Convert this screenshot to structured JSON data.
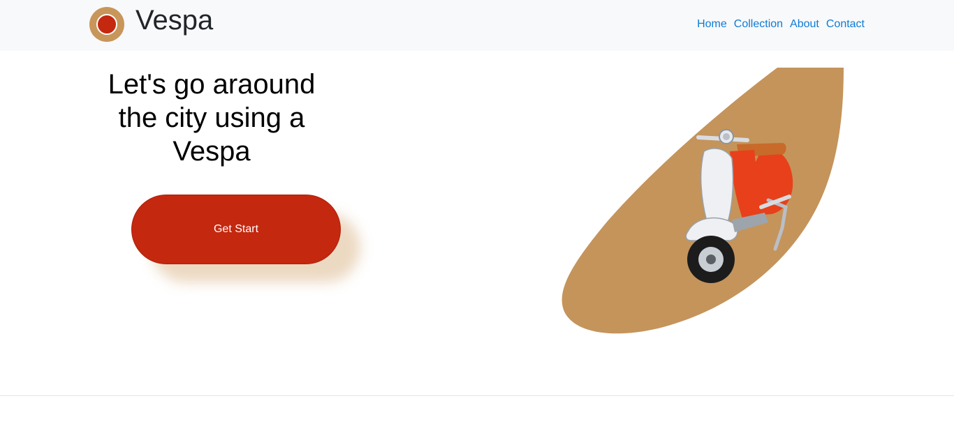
{
  "brand": {
    "name": "Vespa"
  },
  "nav": {
    "items": [
      {
        "label": "Home"
      },
      {
        "label": "Collection"
      },
      {
        "label": "About"
      },
      {
        "label": "Contact"
      }
    ]
  },
  "hero": {
    "title": "Let's go araound the city using a Vespa",
    "cta_label": "Get Start",
    "image_icon": "scooter-illustration"
  },
  "colors": {
    "accent_red": "#c4280f",
    "accent_tan": "#c8965a",
    "link": "#0d7bd6",
    "navbar_bg": "#f8f9fa"
  }
}
